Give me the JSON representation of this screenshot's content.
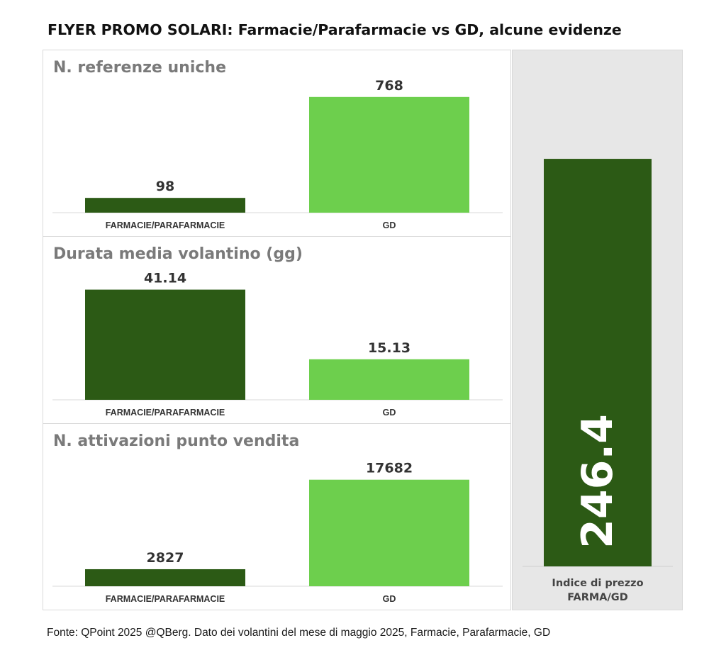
{
  "title": "FLYER PROMO SOLARI: Farmacie/Parafarmacie vs GD, alcune evidenze",
  "source": "Fonte: QPoint 2025 @QBerg. Dato dei volantini del mese di maggio 2025, Farmacie, Parafarmacie, GD",
  "colors": {
    "dark_green": "#2c5a15",
    "light_green": "#6dcf4d"
  },
  "chart_data": [
    {
      "type": "bar",
      "title": "N. referenze uniche",
      "categories": [
        "FARMACIE/PARAFARMACIE",
        "GD"
      ],
      "values": [
        98,
        768
      ],
      "value_labels": [
        "98",
        "768"
      ],
      "ylim": [
        0,
        800
      ]
    },
    {
      "type": "bar",
      "title": "Durata media volantino (gg)",
      "categories": [
        "FARMACIE/PARAFARMACIE",
        "GD"
      ],
      "values": [
        41.14,
        15.13
      ],
      "value_labels": [
        "41.14",
        "15.13"
      ],
      "ylim": [
        0,
        45
      ]
    },
    {
      "type": "bar",
      "title": "N. attivazioni punto vendita",
      "categories": [
        "FARMACIE/PARAFARMACIE",
        "GD"
      ],
      "values": [
        2827,
        17682
      ],
      "value_labels": [
        "2827",
        "17682"
      ],
      "ylim": [
        0,
        20000
      ]
    },
    {
      "type": "bar",
      "title": "",
      "categories": [
        "Indice di prezzo FARMA/GD"
      ],
      "category_lines": [
        "Indice di prezzo",
        "FARMA/GD"
      ],
      "values": [
        246.4
      ],
      "value_labels": [
        "246.4"
      ],
      "ylim": [
        0,
        300
      ]
    }
  ]
}
